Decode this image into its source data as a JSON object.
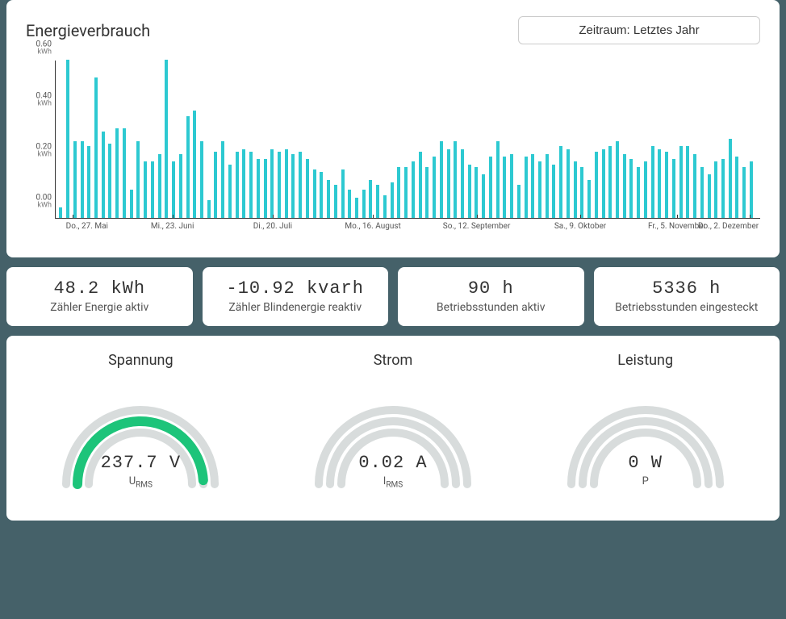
{
  "chart": {
    "title": "Energieverbrauch",
    "period_label": "Zeitraum: Letztes Jahr",
    "type": "bar",
    "bar_color": "#2dc9d1",
    "background_color": "#ffffff",
    "axis_color": "#333333",
    "y_unit": "kWh",
    "ylim": [
      0,
      0.62
    ],
    "y_ticks": [
      0.0,
      0.2,
      0.4,
      0.6
    ],
    "x_ticks": [
      {
        "pos": 0.02,
        "label": "Do., 27. Mai"
      },
      {
        "pos": 0.165,
        "label": "Mi., 23. Juni"
      },
      {
        "pos": 0.31,
        "label": "Di., 20. Juli"
      },
      {
        "pos": 0.455,
        "label": "Mo., 16. August"
      },
      {
        "pos": 0.605,
        "label": "So., 12. September"
      },
      {
        "pos": 0.755,
        "label": "Sa., 9. Oktober"
      },
      {
        "pos": 0.895,
        "label": "Fr., 5. November"
      },
      {
        "pos": 1.0,
        "label": "Do., 2. Dezember"
      }
    ],
    "values": [
      0.04,
      0.62,
      0.3,
      0.3,
      0.28,
      0.55,
      0.34,
      0.29,
      0.35,
      0.35,
      0.11,
      0.3,
      0.22,
      0.22,
      0.25,
      0.62,
      0.22,
      0.25,
      0.4,
      0.42,
      0.3,
      0.07,
      0.26,
      0.3,
      0.21,
      0.26,
      0.27,
      0.26,
      0.23,
      0.23,
      0.27,
      0.26,
      0.27,
      0.25,
      0.26,
      0.23,
      0.19,
      0.18,
      0.15,
      0.13,
      0.19,
      0.11,
      0.08,
      0.11,
      0.15,
      0.13,
      0.09,
      0.14,
      0.2,
      0.2,
      0.22,
      0.26,
      0.2,
      0.24,
      0.3,
      0.27,
      0.3,
      0.27,
      0.21,
      0.2,
      0.17,
      0.24,
      0.3,
      0.24,
      0.25,
      0.13,
      0.24,
      0.25,
      0.22,
      0.25,
      0.21,
      0.28,
      0.27,
      0.22,
      0.2,
      0.15,
      0.26,
      0.27,
      0.28,
      0.3,
      0.25,
      0.23,
      0.2,
      0.22,
      0.28,
      0.27,
      0.26,
      0.23,
      0.28,
      0.28,
      0.25,
      0.2,
      0.17,
      0.22,
      0.23,
      0.31,
      0.24,
      0.2,
      0.22
    ]
  },
  "stats": [
    {
      "value": "48.2 kWh",
      "label": "Zähler Energie aktiv"
    },
    {
      "value": "-10.92 kvarh",
      "label": "Zähler Blindenergie reaktiv"
    },
    {
      "value": "90 h",
      "label": "Betriebsstunden aktiv"
    },
    {
      "value": "5336 h",
      "label": "Betriebsstunden eingesteckt"
    }
  ],
  "gauges": {
    "track_color": "#d8dcdc",
    "fill_color": "#1dc47a",
    "items": [
      {
        "title": "Spannung",
        "value": "237.7 V",
        "sub": "U",
        "subscript": "RMS",
        "fill": 0.98,
        "arcs": 3
      },
      {
        "title": "Strom",
        "value": "0.02 A",
        "sub": "I",
        "subscript": "RMS",
        "fill": 0.0,
        "arcs": 3
      },
      {
        "title": "Leistung",
        "value": "0 W",
        "sub": "P",
        "subscript": "",
        "fill": 0.0,
        "arcs": 3
      }
    ]
  }
}
